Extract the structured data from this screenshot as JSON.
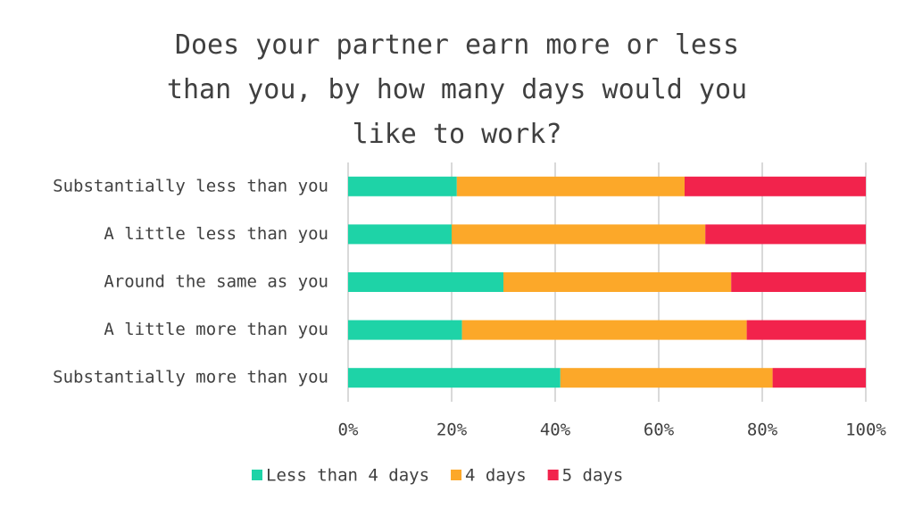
{
  "chart_data": {
    "type": "stacked-bar-horizontal",
    "title": "Does your partner earn more or less than you, by how many days would you like to work?",
    "categories": [
      "Substantially less than you",
      "A little less than you",
      "Around the same as you",
      "A little more than you",
      "Substantially more than you"
    ],
    "series": [
      {
        "name": "Less than 4 days",
        "color": "#1ed3a7",
        "values": [
          21,
          20,
          30,
          22,
          41
        ]
      },
      {
        "name": "4 days",
        "color": "#fca829",
        "values": [
          44,
          49,
          44,
          55,
          41
        ]
      },
      {
        "name": "5 days",
        "color": "#f2234c",
        "values": [
          35,
          31,
          26,
          23,
          18
        ]
      }
    ],
    "xlim": [
      0,
      100
    ],
    "xticks": [
      {
        "value": 0,
        "label": "0%"
      },
      {
        "value": 20,
        "label": "20%"
      },
      {
        "value": 40,
        "label": "40%"
      },
      {
        "value": 60,
        "label": "60%"
      },
      {
        "value": 80,
        "label": "80%"
      },
      {
        "value": 100,
        "label": "100%"
      }
    ],
    "grid": true
  }
}
